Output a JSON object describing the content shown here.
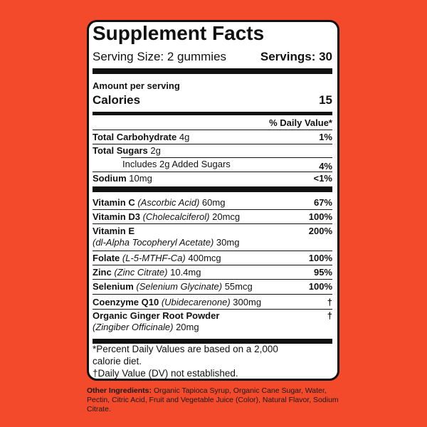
{
  "header": {
    "title": "Supplement Facts",
    "serving_size": "Serving Size: 2 gummies",
    "servings": "Servings: 30"
  },
  "calories": {
    "amount_per_serving": "Amount per serving",
    "label": "Calories",
    "value": "15"
  },
  "dv_header": "% Daily Value*",
  "macros": [
    {
      "name": "Total Carbohydrate",
      "amount": "4g",
      "dv": "1%"
    },
    {
      "name": "Total Sugars",
      "amount": "2g"
    },
    {
      "text": "Includes 2g Added Sugars",
      "dv": "4%"
    },
    {
      "name": "Sodium",
      "amount": "10mg",
      "dv": "<1%"
    }
  ],
  "nutrients": [
    {
      "name": "Vitamin C",
      "detail": "(Ascorbic Acid)",
      "amount": "60mg",
      "dv": "67%"
    },
    {
      "name": "Vitamin D3",
      "detail": "(Cholecalciferol)",
      "amount": "20mcg",
      "dv": "100%"
    },
    {
      "name": "Vitamin E",
      "detail": "(dl-Alpha Tocopheryl Acetate)",
      "amount": "30mg",
      "dv": "200%"
    },
    {
      "name": "Folate",
      "detail": "(L-5-MTHF-Ca)",
      "amount": "400mcg",
      "dv": "100%"
    },
    {
      "name": "Zinc",
      "detail": "(Zinc Citrate)",
      "amount": "10.4mg",
      "dv": "95%"
    },
    {
      "name": "Selenium",
      "detail": "(Selenium Glycinate)",
      "amount": "55mcg",
      "dv": "100%"
    },
    {
      "name": "Coenzyme Q10",
      "detail": "(Ubidecarenone)",
      "amount": "300mg",
      "dv": "†"
    },
    {
      "name": "Organic Ginger Root Powder",
      "detail": "(Zingiber Officinale)",
      "amount": "20mg",
      "dv": "†"
    }
  ],
  "footnotes": [
    "*Percent Daily Values are based on a 2,000 calorie diet.",
    "†Daily Value (DV) not established."
  ],
  "other_ingredients": {
    "label": "Other Ingredients:",
    "text": "Organic Tapioca Syrup, Organic Cane Sugar, Water, Pectin, Citric Acid, Fruit and Vegetable Juice (Color), Natural Flavor, Sodium Citrate."
  }
}
